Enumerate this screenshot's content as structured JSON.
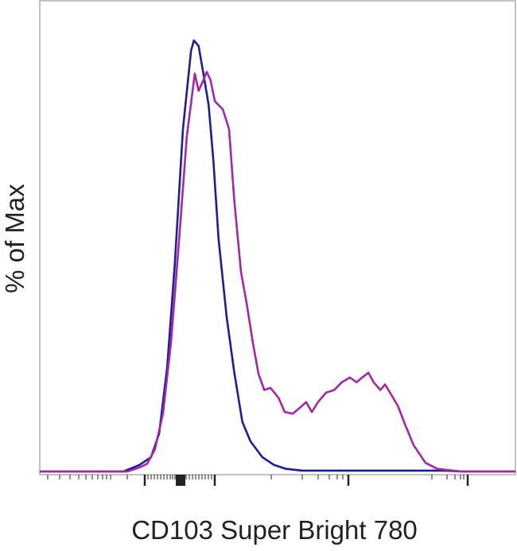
{
  "chart_data": {
    "type": "line",
    "y_label": "% of Max",
    "x_label": "CD103 Super Bright 780",
    "xlim": [
      0,
      100
    ],
    "ylim": [
      0,
      109
    ],
    "series": [
      {
        "color": "#1c1c9c",
        "x": [
          0,
          17.6,
          20.9,
          23.4,
          25.1,
          26.8,
          28.4,
          30.1,
          31.8,
          32.4,
          33.4,
          34.4,
          35.5,
          36.5,
          37.6,
          39.3,
          40.9,
          42.6,
          44.3,
          46.8,
          49.3,
          51.8,
          55.2,
          61.9,
          85.3,
          88.6,
          100
        ],
        "values": [
          0,
          0,
          1.5,
          3.3,
          8.8,
          24.4,
          48.2,
          79.4,
          97.6,
          100,
          98.7,
          92.3,
          85,
          72.1,
          53.9,
          35.8,
          22.9,
          11.5,
          7,
          3.3,
          1.5,
          0.6,
          0.2,
          0.2,
          0.2,
          0,
          0
        ]
      },
      {
        "color": "#a526a8",
        "x": [
          0,
          18.4,
          20.9,
          22.6,
          24.2,
          25.9,
          27.6,
          29.3,
          30.9,
          32.6,
          33.4,
          34.3,
          35.1,
          35.9,
          36.8,
          38.5,
          39.8,
          40.9,
          42.3,
          43.5,
          44.8,
          46,
          47.2,
          48.5,
          50.2,
          51.5,
          53.2,
          54.8,
          56,
          57.2,
          58.5,
          60.2,
          61.9,
          63.5,
          65.2,
          66.6,
          67.7,
          69.1,
          70.2,
          71.6,
          72.6,
          73.8,
          75.3,
          76.9,
          78.6,
          81.1,
          83.6,
          88.6,
          100
        ],
        "values": [
          0,
          0,
          0.9,
          1.8,
          5.1,
          13.4,
          29.9,
          53.8,
          77.6,
          92.3,
          88.3,
          90.5,
          92.7,
          90.8,
          85.9,
          84,
          79.4,
          62.8,
          46.3,
          39,
          29.9,
          22.6,
          18.9,
          19.4,
          17.1,
          13.8,
          13.4,
          14.9,
          16.1,
          13.8,
          16.1,
          18.3,
          18.9,
          20.7,
          21.8,
          20.7,
          21.7,
          22.9,
          20.7,
          18.9,
          20.2,
          18,
          15.2,
          10.6,
          6.1,
          2,
          0.6,
          0,
          0
        ]
      }
    ]
  }
}
